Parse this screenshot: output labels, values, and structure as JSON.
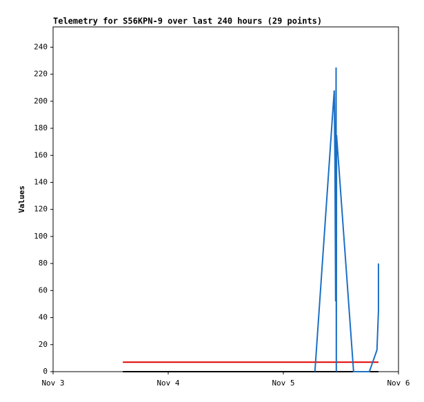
{
  "chart_data": {
    "type": "line",
    "title": "Telemetry for S56KPN-9 over last 240 hours (29 points)",
    "y_label": "Values",
    "xlim": [
      3,
      6
    ],
    "xticks": [
      {
        "value": 3,
        "label": "Nov 3"
      },
      {
        "value": 4,
        "label": "Nov 4"
      },
      {
        "value": 5,
        "label": "Nov 5"
      },
      {
        "value": 6,
        "label": "Nov 6"
      }
    ],
    "ylim": [
      0,
      255
    ],
    "yticks": [
      0,
      20,
      40,
      60,
      80,
      100,
      120,
      140,
      160,
      180,
      200,
      220,
      240
    ],
    "series": [
      {
        "color": "#e00000",
        "x": [
          3.606,
          5.826
        ],
        "values": [
          7,
          7
        ]
      },
      {
        "color": "#000000",
        "x": [
          3.606,
          5.826
        ],
        "values": [
          0,
          0
        ]
      },
      {
        "color": "#1a6fc4",
        "x": [
          5.274,
          5.442,
          5.448,
          5.454,
          5.458,
          5.46,
          5.462,
          5.61,
          5.747,
          5.813,
          5.826,
          5.826
        ],
        "values": [
          0,
          208,
          155,
          52,
          225,
          0,
          175,
          0,
          0,
          16,
          45,
          80
        ]
      }
    ]
  }
}
